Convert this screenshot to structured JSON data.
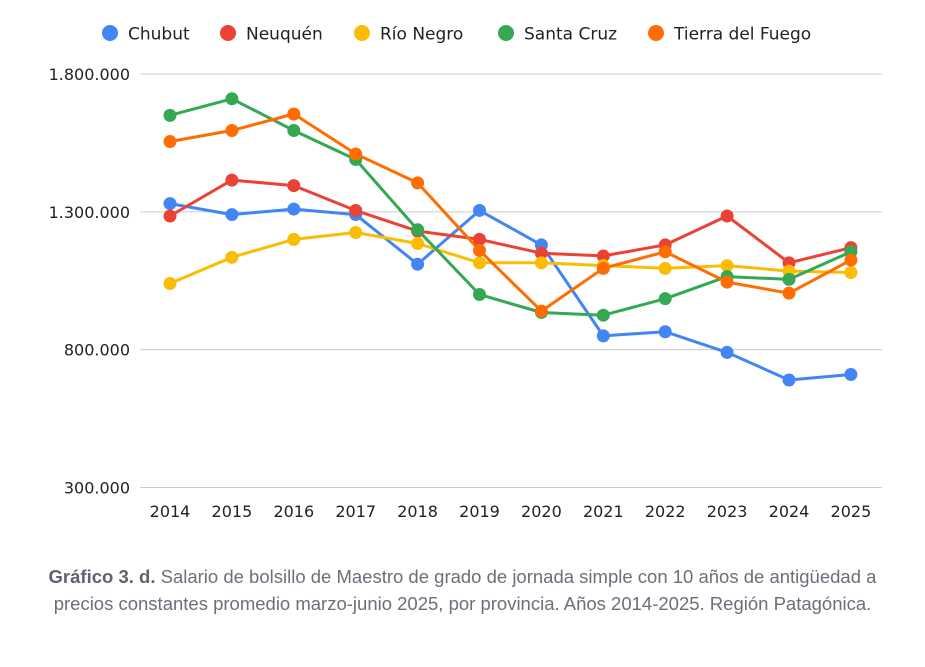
{
  "chart_data": {
    "type": "line",
    "title": "",
    "xlabel": "",
    "ylabel": "",
    "categories": [
      "2014",
      "2015",
      "2016",
      "2017",
      "2018",
      "2019",
      "2020",
      "2021",
      "2022",
      "2023",
      "2024",
      "2025"
    ],
    "ylim": [
      300000,
      1800000
    ],
    "yticks": [
      300000,
      800000,
      1300000,
      1800000
    ],
    "ytick_labels": [
      "300.000",
      "800.000",
      "1.300.000",
      "1.800.000"
    ],
    "grid": true,
    "legend_position": "top",
    "series": [
      {
        "name": "Chubut",
        "color": "#4285f4",
        "values": [
          1330000,
          1290000,
          1310000,
          1290000,
          1110000,
          1305000,
          1180000,
          850000,
          865000,
          790000,
          690000,
          710000
        ]
      },
      {
        "name": "Neuquén",
        "color": "#ea4335",
        "values": [
          1285000,
          1415000,
          1395000,
          1305000,
          1230000,
          1200000,
          1150000,
          1140000,
          1180000,
          1285000,
          1115000,
          1170000
        ]
      },
      {
        "name": "Río Negro",
        "color": "#fbbc04",
        "values": [
          1040000,
          1135000,
          1200000,
          1225000,
          1185000,
          1115000,
          1115000,
          1105000,
          1095000,
          1105000,
          1085000,
          1080000
        ]
      },
      {
        "name": "Santa Cruz",
        "color": "#34a853",
        "values": [
          1650000,
          1710000,
          1595000,
          1490000,
          1235000,
          1000000,
          935000,
          925000,
          985000,
          1065000,
          1055000,
          1155000
        ]
      },
      {
        "name": "Tierra del Fuego",
        "color": "#ff6d01",
        "values": [
          1555000,
          1595000,
          1655000,
          1510000,
          1405000,
          1160000,
          940000,
          1095000,
          1155000,
          1045000,
          1005000,
          1125000
        ]
      }
    ]
  },
  "caption": {
    "label": "Gráfico 3. d.",
    "text": "Salario de bolsillo de Maestro de grado de jornada simple con 10 años de antigüedad a precios constantes promedio marzo-junio 2025, por provincia. Años 2014-2025. Región Patagónica."
  }
}
